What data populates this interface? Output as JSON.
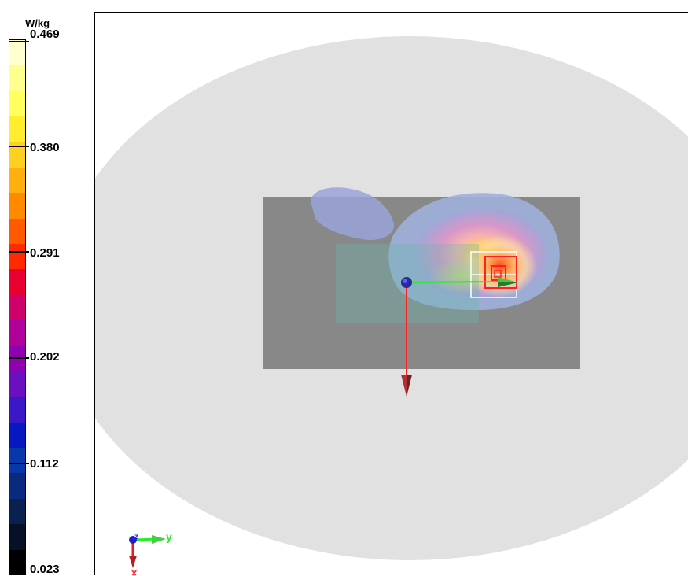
{
  "legend": {
    "unit": "W/kg",
    "ticks": [
      "0.469",
      "0.380",
      "0.291",
      "0.202",
      "0.112",
      "0.023"
    ],
    "colors": [
      "#ffffd0",
      "#ffff90",
      "#ffff60",
      "#ffee30",
      "#ffd020",
      "#ffb010",
      "#ff8a00",
      "#ff5a00",
      "#ff2a00",
      "#e80030",
      "#d0006a",
      "#b0009a",
      "#9000b0",
      "#6a10c0",
      "#3a18c8",
      "#0818c0",
      "#0838a8",
      "#0a2a80",
      "#0a2050",
      "#081028",
      "#000000"
    ]
  },
  "axes": {
    "y_label": "y",
    "x_label": "x",
    "z_label": "z"
  },
  "colors": {
    "phantom": "#e1e1e1",
    "plate": "#888888",
    "x_axis": "#ff2020",
    "y_axis": "#22ee22",
    "origin": "#2a2aa0"
  }
}
